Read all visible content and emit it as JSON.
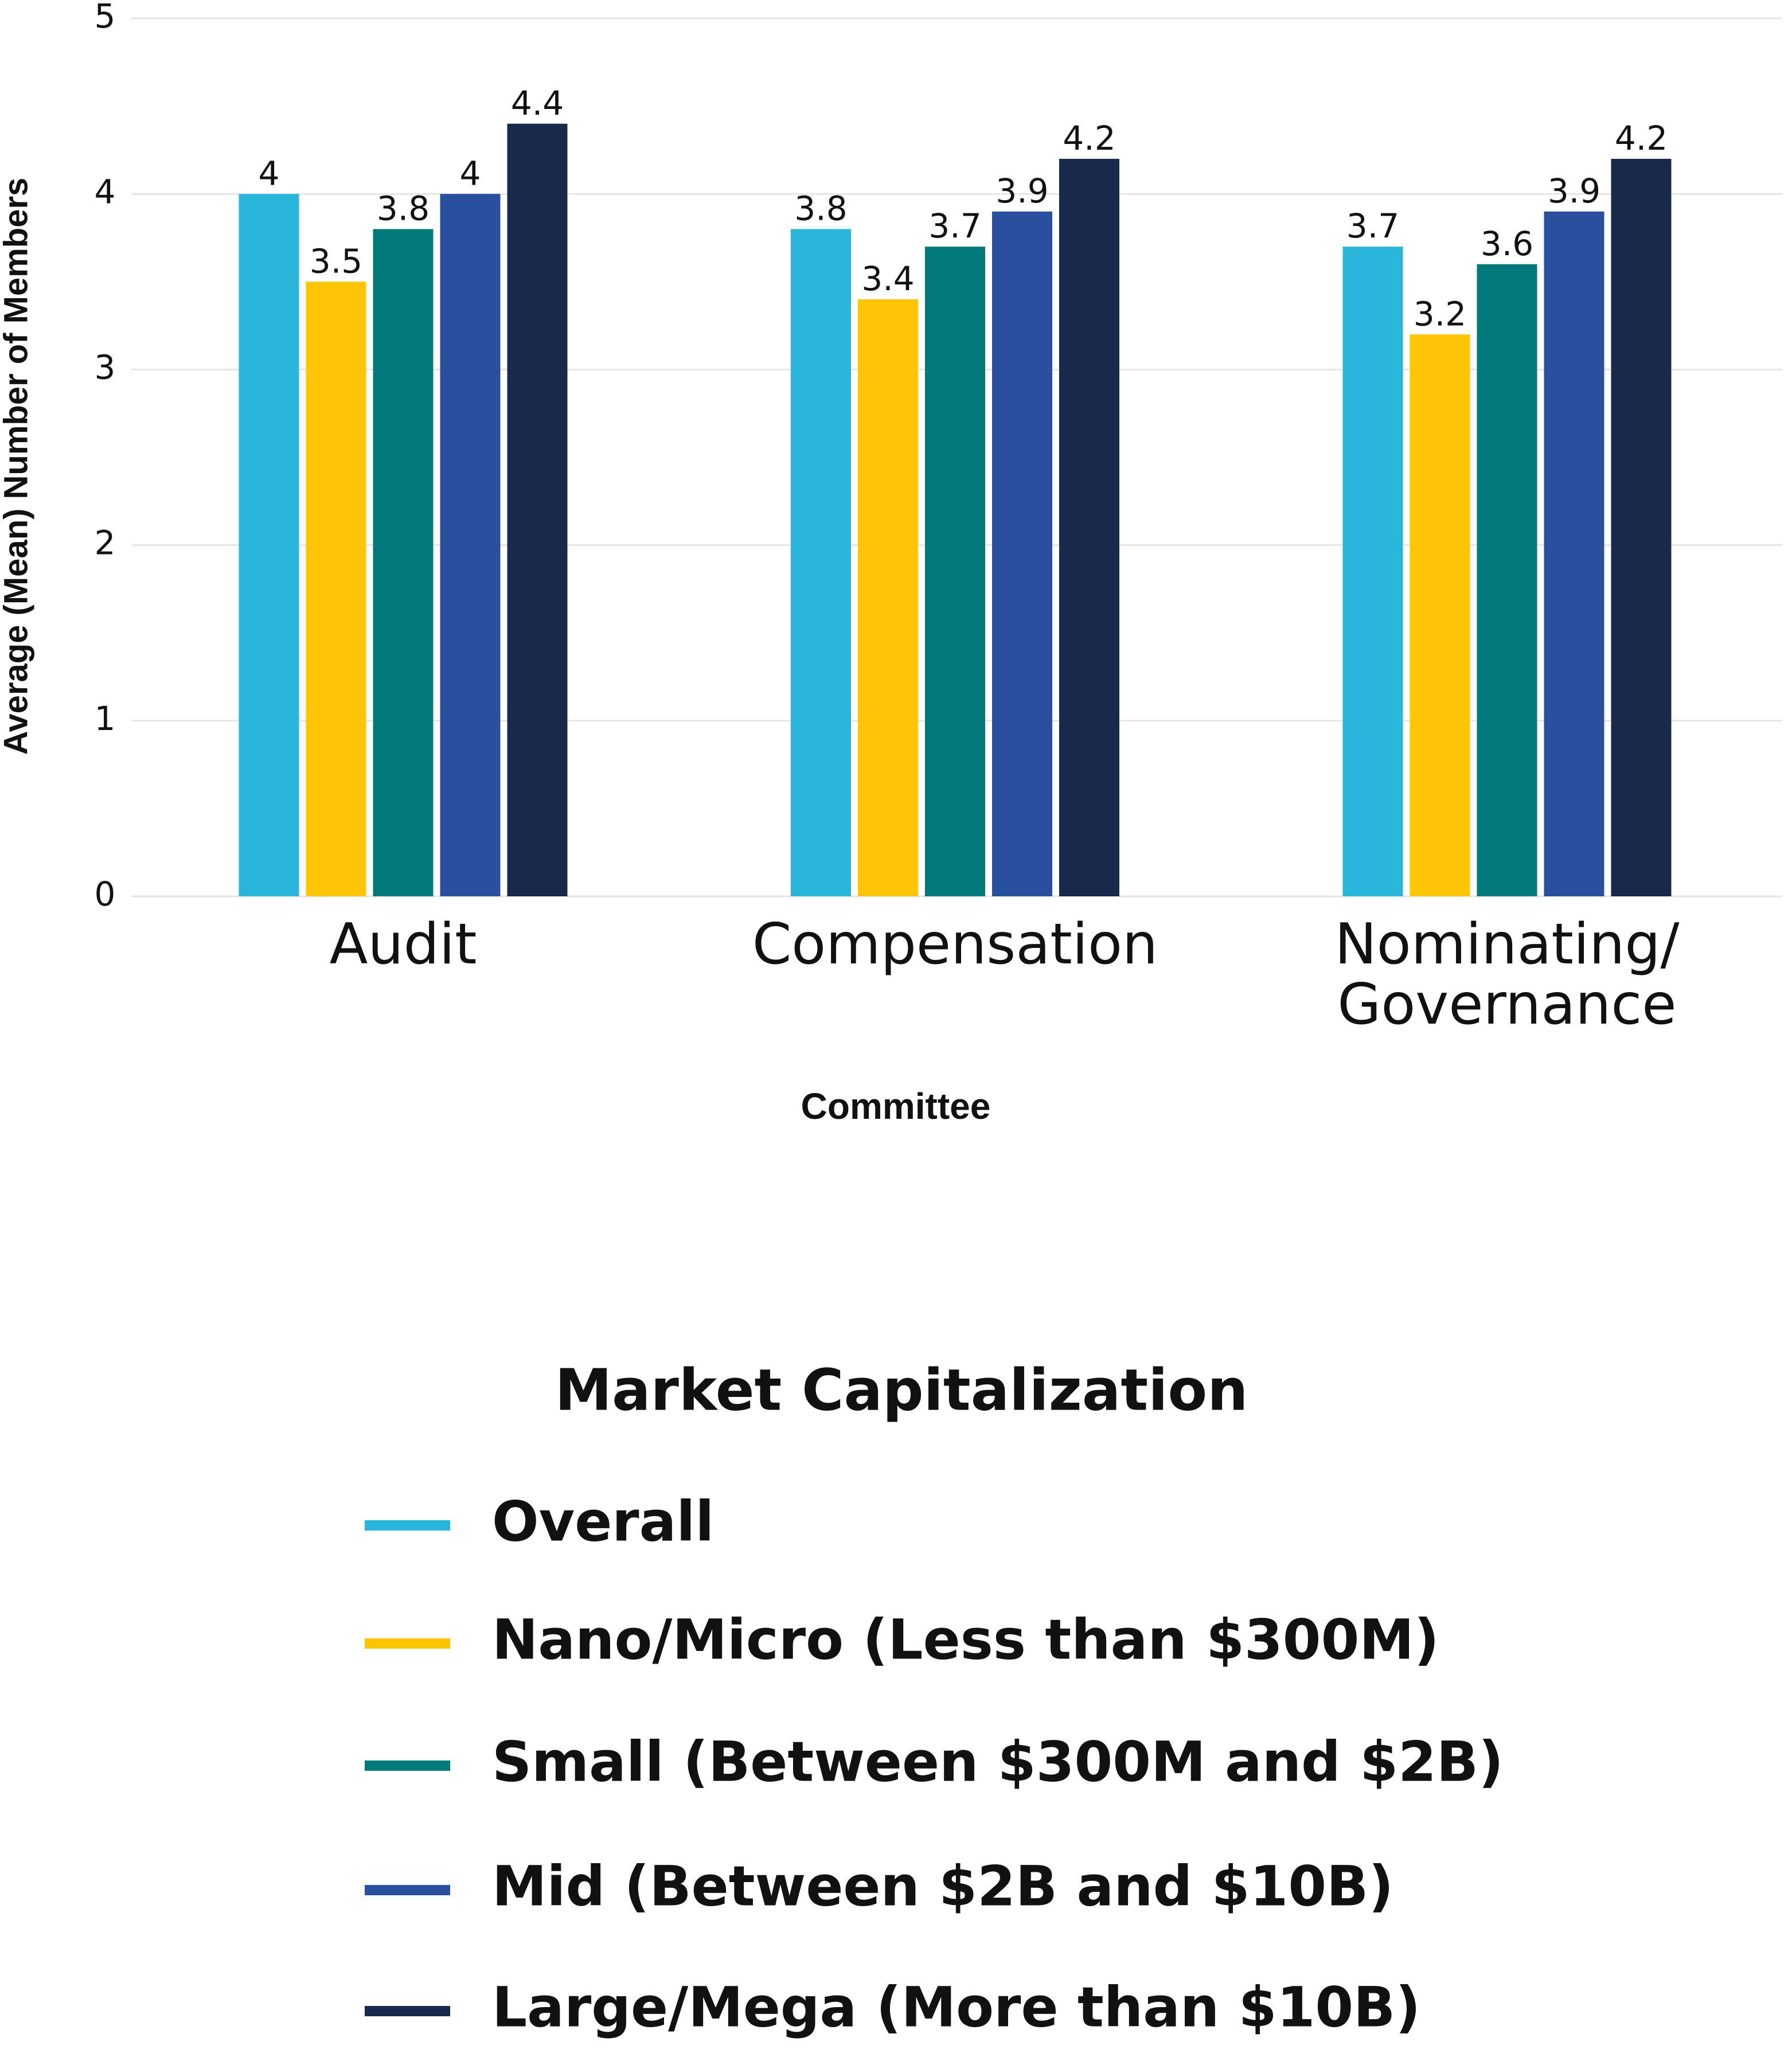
{
  "chart_data": {
    "type": "bar",
    "y_label": "Average (Mean) Number of Members",
    "x_label": "Committee",
    "legend_title": "Market Capitalization",
    "categories": [
      "Audit",
      "Compensation",
      "Nominating/\nGovernance"
    ],
    "series": [
      {
        "name": "Overall",
        "color": "#2ab6da",
        "values": [
          4,
          3.8,
          3.7
        ]
      },
      {
        "name": "Nano/Micro (Less than $300M)",
        "color": "#fec506",
        "values": [
          3.5,
          3.4,
          3.2
        ]
      },
      {
        "name": "Small (Between $300M and $2B)",
        "color": "#027a7c",
        "values": [
          3.8,
          3.7,
          3.6
        ]
      },
      {
        "name": "Mid (Between $2B and $10B)",
        "color": "#28509e",
        "values": [
          4,
          3.9,
          3.9
        ]
      },
      {
        "name": "Large/Mega (More than $10B)",
        "color": "#18294c",
        "values": [
          4.4,
          4.2,
          4.2
        ]
      }
    ],
    "ylim": [
      0,
      5
    ],
    "yticks": [
      0,
      1,
      2,
      3,
      4,
      5
    ],
    "grid": true,
    "legend": "bottom"
  }
}
